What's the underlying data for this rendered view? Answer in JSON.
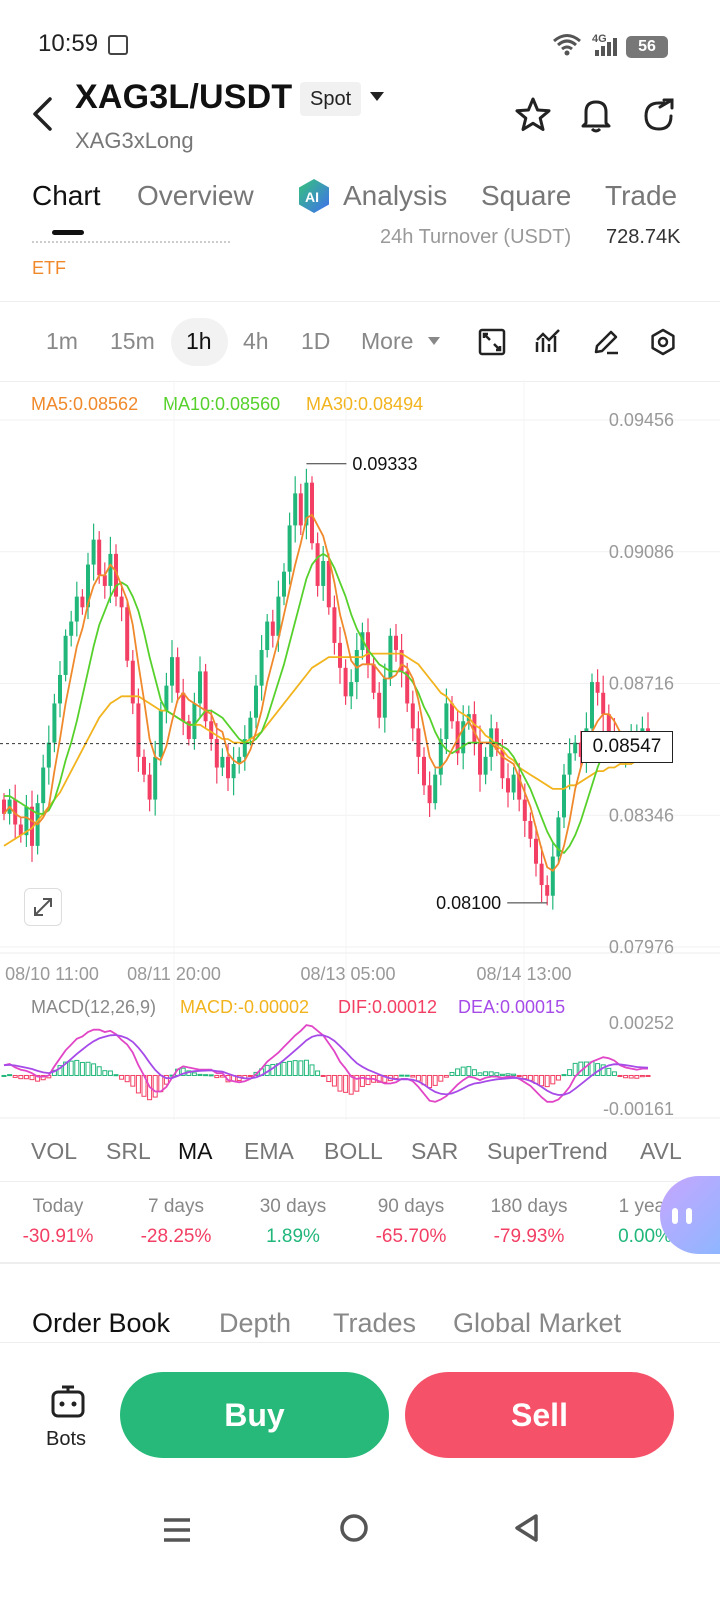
{
  "status_bar": {
    "time": "10:59",
    "network": "4G",
    "battery": "56"
  },
  "header": {
    "pair": "XAG3L/USDT",
    "market_type": "Spot",
    "subtitle": "XAG3xLong"
  },
  "tabs": [
    {
      "label": "Chart",
      "active": true
    },
    {
      "label": "Overview",
      "active": false
    },
    {
      "label": "Analysis",
      "active": false
    },
    {
      "label": "Square",
      "active": false
    },
    {
      "label": "Trade",
      "active": false
    }
  ],
  "stats_peek": {
    "label": "24h   Turnover (USDT)",
    "value": "728.74K"
  },
  "tag": "ETF",
  "intervals": [
    {
      "label": "1m",
      "active": false
    },
    {
      "label": "15m",
      "active": false
    },
    {
      "label": "1h",
      "active": true
    },
    {
      "label": "4h",
      "active": false
    },
    {
      "label": "1D",
      "active": false
    },
    {
      "label": "More",
      "active": false
    }
  ],
  "ma_legend": {
    "ma5": "MA5:0.08562",
    "ma10": "MA10:0.08560",
    "ma30": "MA30:0.08494"
  },
  "macd_legend": {
    "params": "MACD(12,26,9)",
    "macd": "MACD:-0.00002",
    "dif": "DIF:0.00012",
    "dea": "DEA:0.00015"
  },
  "current_price": "0.08547",
  "colors": {
    "up": "#21b77a",
    "down": "#f23f63",
    "ma5": "#f0892b",
    "ma10": "#56d12c",
    "ma30": "#f2b41e",
    "dif": "#e146c7",
    "dea": "#a64be8",
    "buy": "#26b979",
    "sell": "#f5526a"
  },
  "chart_data": {
    "type": "candlestick",
    "interval": "1h",
    "ylim": [
      0.07976,
      0.09456
    ],
    "y_ticks": [
      "0.09456",
      "0.09086",
      "0.08716",
      "0.08346",
      "0.07976"
    ],
    "x_ticks": [
      "08/10 11:00",
      "08/11 20:00",
      "08/13 05:00",
      "08/14 13:00"
    ],
    "annotations": {
      "high": "0.09333",
      "low": "0.08100"
    },
    "closes": [
      0.0835,
      0.0839,
      0.0832,
      0.0829,
      0.0837,
      0.0826,
      0.0838,
      0.0848,
      0.0855,
      0.0866,
      0.0874,
      0.0885,
      0.0889,
      0.0896,
      0.0893,
      0.0905,
      0.0912,
      0.0902,
      0.0899,
      0.0908,
      0.0896,
      0.0893,
      0.0878,
      0.0866,
      0.0851,
      0.0846,
      0.0839,
      0.0851,
      0.0864,
      0.0871,
      0.0879,
      0.0869,
      0.0861,
      0.0856,
      0.0866,
      0.0875,
      0.0861,
      0.0856,
      0.0848,
      0.0851,
      0.0845,
      0.0849,
      0.0851,
      0.0856,
      0.0862,
      0.0871,
      0.0881,
      0.0889,
      0.0885,
      0.0896,
      0.0903,
      0.0916,
      0.0925,
      0.0916,
      0.0928,
      0.0911,
      0.0899,
      0.0906,
      0.0893,
      0.0883,
      0.0876,
      0.0868,
      0.0872,
      0.0881,
      0.0886,
      0.0877,
      0.0869,
      0.0862,
      0.0873,
      0.0885,
      0.0881,
      0.0875,
      0.0866,
      0.0859,
      0.0851,
      0.0843,
      0.0838,
      0.0846,
      0.0856,
      0.0866,
      0.0861,
      0.0852,
      0.0861,
      0.0863,
      0.0855,
      0.0846,
      0.0851,
      0.0859,
      0.0853,
      0.0845,
      0.0841,
      0.0846,
      0.0839,
      0.0833,
      0.0828,
      0.0821,
      0.0815,
      0.0812,
      0.0823,
      0.0834,
      0.0846,
      0.0852,
      0.0855,
      0.0851,
      0.0859,
      0.0872,
      0.0869,
      0.0863,
      0.0858,
      0.0855,
      0.0851,
      0.0853,
      0.0856,
      0.0858,
      0.0859,
      0.0855
    ],
    "ma5": [
      0.0835,
      0.0837,
      0.0835,
      0.0834,
      0.0834,
      0.0833,
      0.0832,
      0.0834,
      0.0837,
      0.0847,
      0.0856,
      0.0866,
      0.0874,
      0.0882,
      0.0887,
      0.0894,
      0.0899,
      0.0902,
      0.0902,
      0.0905,
      0.0903,
      0.0899,
      0.0895,
      0.0888,
      0.0877,
      0.0867,
      0.0856,
      0.0851,
      0.085,
      0.0854,
      0.0861,
      0.0867,
      0.0869,
      0.0867,
      0.0866,
      0.0865,
      0.0864,
      0.0863,
      0.0859,
      0.0858,
      0.0852,
      0.085,
      0.0849,
      0.085,
      0.0853,
      0.0858,
      0.0864,
      0.0872,
      0.0878,
      0.0884,
      0.0891,
      0.0898,
      0.0905,
      0.0911,
      0.0918,
      0.0919,
      0.0916,
      0.0913,
      0.0907,
      0.09,
      0.0891,
      0.0885,
      0.0878,
      0.0876,
      0.0877,
      0.0877,
      0.0877,
      0.0875,
      0.0873,
      0.0873,
      0.0874,
      0.0877,
      0.0876,
      0.0873,
      0.0867,
      0.0859,
      0.0851,
      0.0848,
      0.0848,
      0.085,
      0.0853,
      0.0856,
      0.0859,
      0.0861,
      0.0858,
      0.0855,
      0.0855,
      0.0855,
      0.0853,
      0.0851,
      0.085,
      0.0849,
      0.0845,
      0.0841,
      0.0837,
      0.0831,
      0.0825,
      0.082,
      0.0819,
      0.0821,
      0.0826,
      0.0833,
      0.0842,
      0.0848,
      0.0853,
      0.0858,
      0.0861,
      0.0863,
      0.0863,
      0.0861,
      0.0858,
      0.0856,
      0.0855,
      0.0855,
      0.0856,
      0.0856
    ],
    "ma10": [
      0.084,
      0.084,
      0.0839,
      0.0838,
      0.0837,
      0.0836,
      0.0835,
      0.0835,
      0.0836,
      0.0839,
      0.0844,
      0.085,
      0.0855,
      0.0861,
      0.0868,
      0.0875,
      0.0882,
      0.0888,
      0.0892,
      0.0896,
      0.0899,
      0.09,
      0.0899,
      0.0896,
      0.0892,
      0.0886,
      0.0879,
      0.0873,
      0.0867,
      0.0864,
      0.0863,
      0.0862,
      0.0861,
      0.086,
      0.086,
      0.0862,
      0.0864,
      0.0864,
      0.0863,
      0.0862,
      0.086,
      0.0858,
      0.0856,
      0.0855,
      0.0855,
      0.0856,
      0.0858,
      0.0862,
      0.0867,
      0.0872,
      0.0877,
      0.0883,
      0.0889,
      0.0895,
      0.0901,
      0.0905,
      0.0907,
      0.0908,
      0.0907,
      0.0904,
      0.09,
      0.0896,
      0.0891,
      0.0887,
      0.0884,
      0.0881,
      0.0879,
      0.0877,
      0.0876,
      0.0875,
      0.0875,
      0.0875,
      0.0874,
      0.0872,
      0.0869,
      0.0865,
      0.0862,
      0.0858,
      0.0855,
      0.0853,
      0.0852,
      0.0853,
      0.0854,
      0.0855,
      0.0855,
      0.0855,
      0.0855,
      0.0855,
      0.0855,
      0.0854,
      0.0853,
      0.0851,
      0.0848,
      0.0845,
      0.0842,
      0.0838,
      0.0834,
      0.083,
      0.0827,
      0.0825,
      0.0824,
      0.0826,
      0.0829,
      0.0833,
      0.0838,
      0.0843,
      0.0848,
      0.0852,
      0.0855,
      0.0857,
      0.0858,
      0.0858,
      0.0858,
      0.0858,
      0.0857,
      0.0856
    ],
    "ma30": [
      0.0826,
      0.0827,
      0.0828,
      0.0829,
      0.083,
      0.0831,
      0.0833,
      0.0835,
      0.0837,
      0.0839,
      0.0841,
      0.0844,
      0.0847,
      0.085,
      0.0853,
      0.0856,
      0.0859,
      0.0862,
      0.0864,
      0.0866,
      0.0867,
      0.0868,
      0.0868,
      0.0868,
      0.0868,
      0.0867,
      0.0866,
      0.0865,
      0.0864,
      0.0864,
      0.0863,
      0.0862,
      0.0861,
      0.086,
      0.086,
      0.086,
      0.0859,
      0.0858,
      0.0857,
      0.0856,
      0.0856,
      0.0855,
      0.0855,
      0.0855,
      0.0856,
      0.0857,
      0.0858,
      0.086,
      0.0862,
      0.0864,
      0.0866,
      0.0868,
      0.087,
      0.0872,
      0.0874,
      0.0876,
      0.0877,
      0.0878,
      0.0879,
      0.0879,
      0.0879,
      0.0879,
      0.0879,
      0.0879,
      0.0879,
      0.088,
      0.088,
      0.088,
      0.088,
      0.088,
      0.088,
      0.088,
      0.0879,
      0.0878,
      0.0877,
      0.0875,
      0.0873,
      0.0871,
      0.0869,
      0.0868,
      0.0866,
      0.0864,
      0.0863,
      0.0862,
      0.086,
      0.0859,
      0.0857,
      0.0856,
      0.0854,
      0.0853,
      0.0851,
      0.085,
      0.0848,
      0.0847,
      0.0846,
      0.0845,
      0.0844,
      0.0843,
      0.0842,
      0.0842,
      0.0842,
      0.0843,
      0.0843,
      0.0844,
      0.0845,
      0.0846,
      0.0847,
      0.0847,
      0.0848,
      0.0848,
      0.0849,
      0.0849,
      0.0849,
      0.085,
      0.085,
      0.085
    ],
    "macd": {
      "ylim": [
        -0.00161,
        0.00252
      ],
      "y_ticks": [
        "0.00252",
        "-0.00161"
      ]
    }
  },
  "indicators": [
    {
      "label": "VOL",
      "active": false
    },
    {
      "label": "SRL",
      "active": false
    },
    {
      "label": "MA",
      "active": true
    },
    {
      "label": "EMA",
      "active": false
    },
    {
      "label": "BOLL",
      "active": false
    },
    {
      "label": "SAR",
      "active": false
    },
    {
      "label": "SuperTrend",
      "active": false
    },
    {
      "label": "AVL",
      "active": false
    }
  ],
  "performance": [
    {
      "label": "Today",
      "value": "-30.91%",
      "dir": "down"
    },
    {
      "label": "7 days",
      "value": "-28.25%",
      "dir": "down"
    },
    {
      "label": "30 days",
      "value": "1.89%",
      "dir": "up"
    },
    {
      "label": "90 days",
      "value": "-65.70%",
      "dir": "down"
    },
    {
      "label": "180 days",
      "value": "-79.93%",
      "dir": "down"
    },
    {
      "label": "1 year",
      "value": "0.00%",
      "dir": "up"
    }
  ],
  "order_tabs": [
    {
      "label": "Order Book",
      "active": true
    },
    {
      "label": "Depth",
      "active": false
    },
    {
      "label": "Trades",
      "active": false
    },
    {
      "label": "Global Market",
      "active": false
    }
  ],
  "bottom_bar": {
    "bots_label": "Bots",
    "buy_label": "Buy",
    "sell_label": "Sell"
  }
}
